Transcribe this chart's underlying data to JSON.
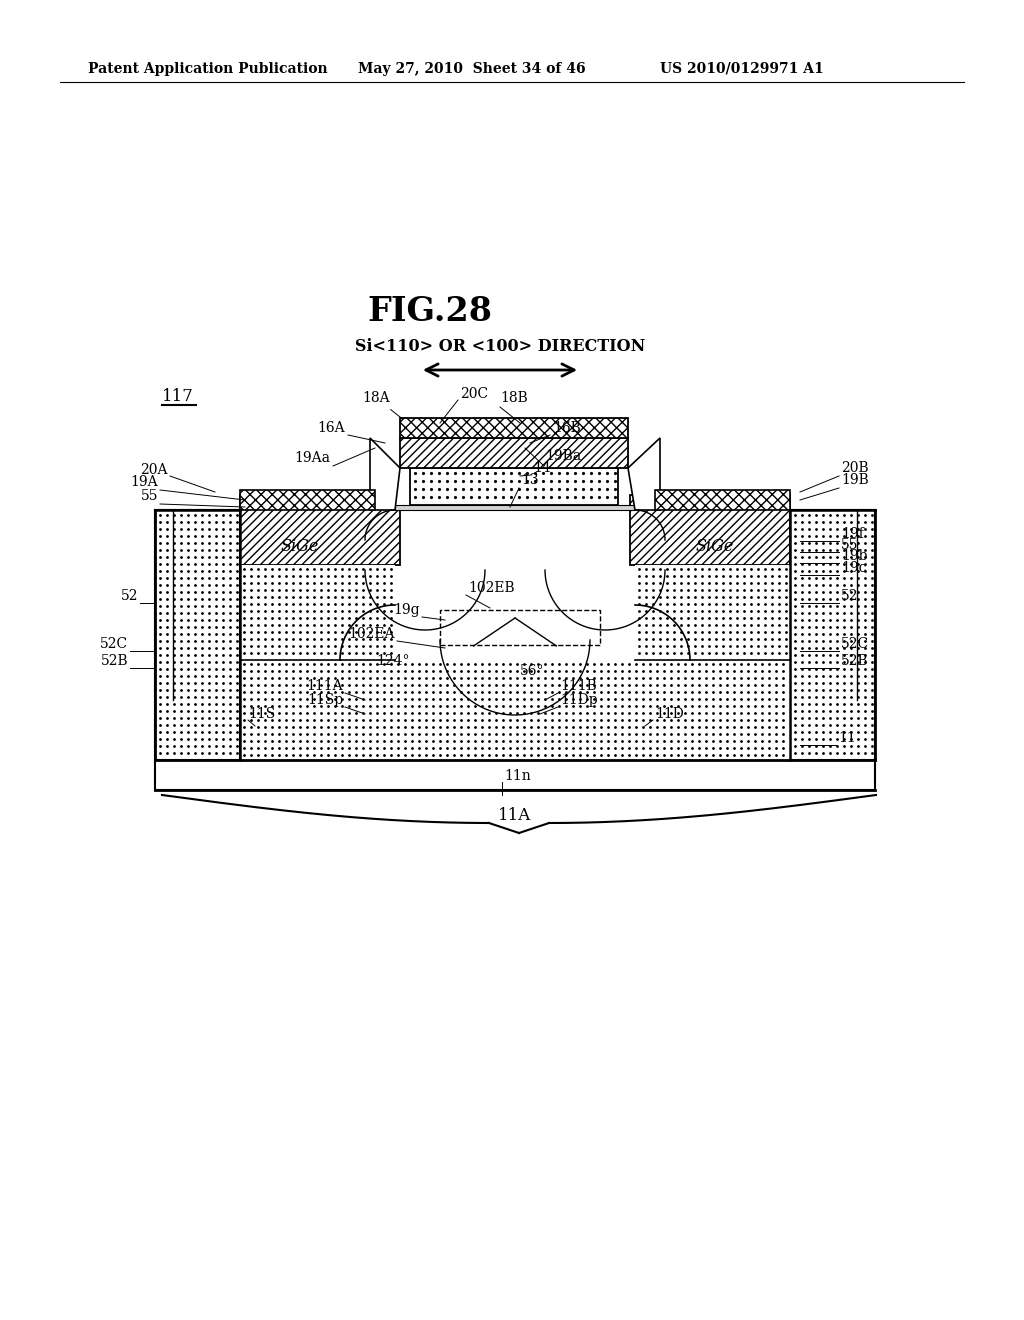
{
  "bg_color": "#ffffff",
  "fig_label": "FIG.28",
  "header_left": "Patent Application Publication",
  "header_mid": "May 27, 2010  Sheet 34 of 46",
  "header_right": "US 2010/0129971 A1",
  "direction_label": "Si<110> OR <100> DIRECTION",
  "label_117": "117"
}
